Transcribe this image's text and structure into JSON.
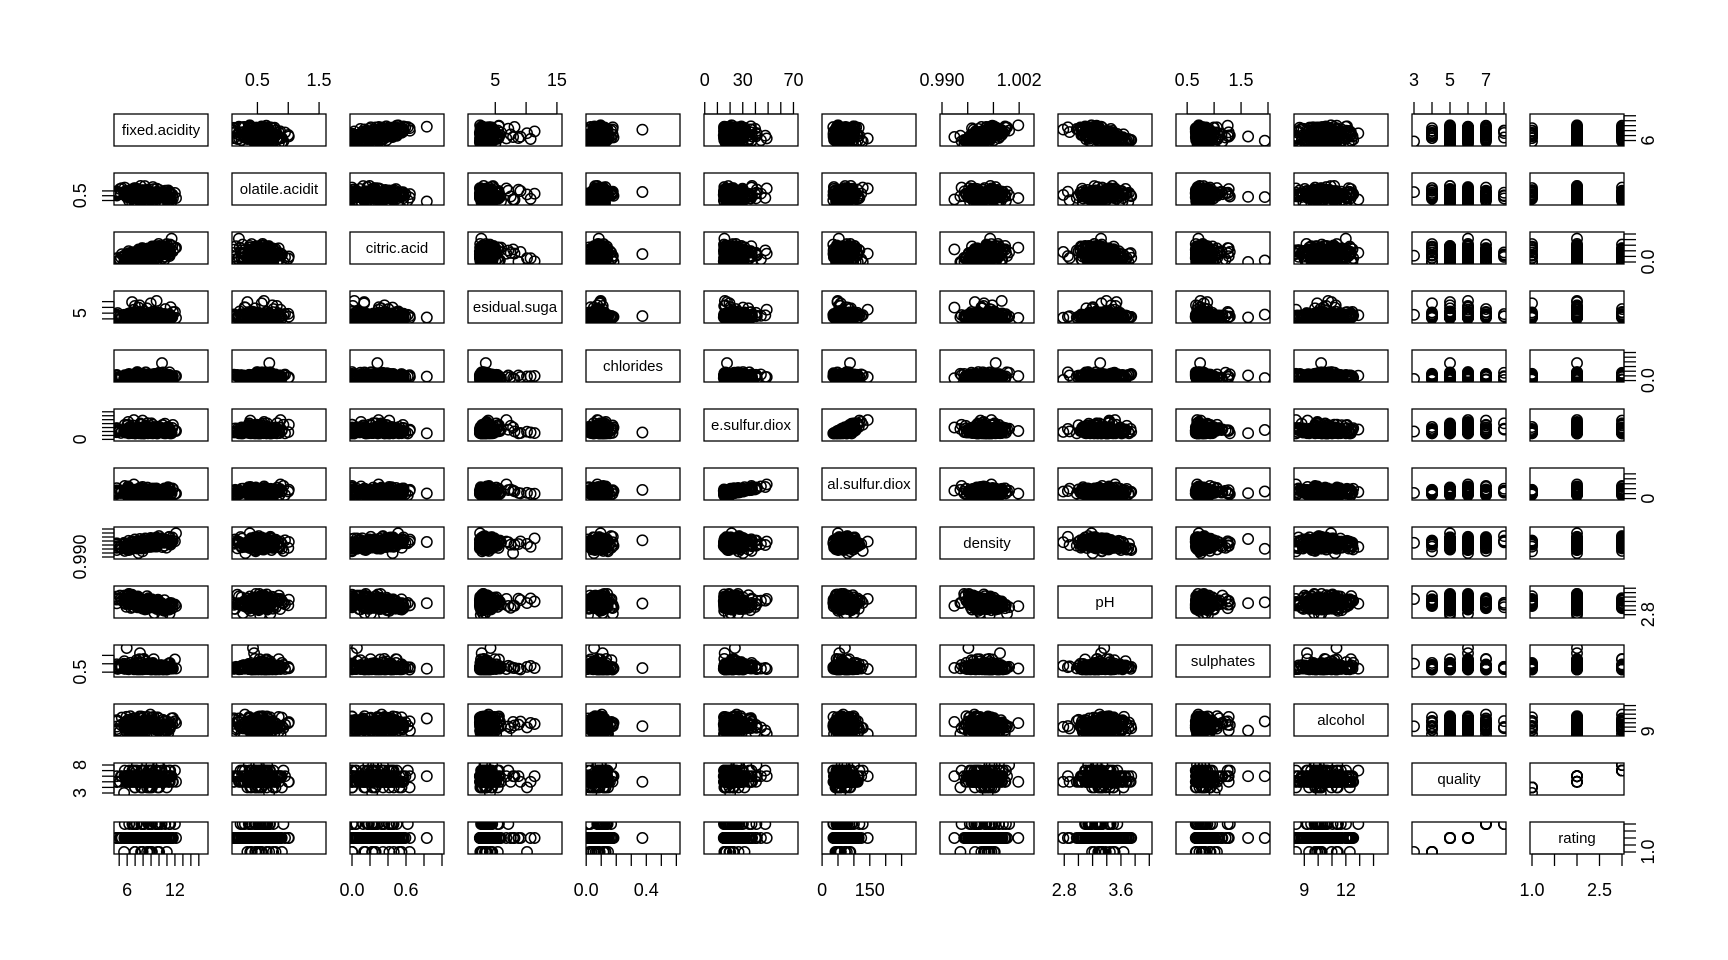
{
  "chart_data": {
    "type": "scatter",
    "variables": [
      {
        "name": "fixed.acidity",
        "diag_label": "fixed.acidity",
        "range": [
          4.6,
          15.9
        ]
      },
      {
        "name": "volatile.acidity",
        "diag_label": "olatile.acidit",
        "range": [
          0.12,
          1.58
        ]
      },
      {
        "name": "citric.acid",
        "diag_label": "citric.acid",
        "range": [
          0.0,
          1.0
        ]
      },
      {
        "name": "residual.sugar",
        "diag_label": "esidual.suga",
        "range": [
          0.9,
          15.5
        ]
      },
      {
        "name": "chlorides",
        "diag_label": "chlorides",
        "range": [
          0.012,
          0.611
        ]
      },
      {
        "name": "free.sulfur.dioxide",
        "diag_label": "e.sulfur.diox",
        "range": [
          1,
          72
        ]
      },
      {
        "name": "total.sulfur.dioxide",
        "diag_label": "al.sulfur.diox",
        "range": [
          6,
          289
        ]
      },
      {
        "name": "density",
        "diag_label": "density",
        "range": [
          0.99,
          1.004
        ]
      },
      {
        "name": "pH",
        "diag_label": "pH",
        "range": [
          2.74,
          4.01
        ]
      },
      {
        "name": "sulphates",
        "diag_label": "sulphates",
        "range": [
          0.33,
          2.0
        ]
      },
      {
        "name": "alcohol",
        "diag_label": "alcohol",
        "range": [
          8.4,
          14.9
        ]
      },
      {
        "name": "quality",
        "diag_label": "quality",
        "range": [
          3,
          8
        ]
      },
      {
        "name": "rating",
        "diag_label": "rating",
        "range": [
          1,
          3
        ]
      }
    ],
    "axes": {
      "top": [
        {
          "col": 1,
          "ticks": [
            0.5,
            1.0,
            1.5
          ],
          "labels": [
            "0.5",
            "",
            "1.5"
          ]
        },
        {
          "col": 3,
          "ticks": [
            5,
            10,
            15
          ],
          "labels": [
            "5",
            "",
            "15"
          ]
        },
        {
          "col": 5,
          "ticks": [
            0,
            10,
            20,
            30,
            40,
            50,
            60,
            70
          ],
          "labels": [
            "0",
            "",
            "",
            "30",
            "",
            "",
            "",
            "70"
          ]
        },
        {
          "col": 7,
          "ticks": [
            0.99,
            0.994,
            0.998,
            1.002
          ],
          "labels": [
            "0.990",
            "",
            "",
            "1.002"
          ]
        },
        {
          "col": 9,
          "ticks": [
            0.5,
            1.0,
            1.5,
            2.0
          ],
          "labels": [
            "0.5",
            "",
            "1.5",
            ""
          ]
        },
        {
          "col": 11,
          "ticks": [
            3,
            4,
            5,
            6,
            7,
            8
          ],
          "labels": [
            "3",
            "",
            "5",
            "",
            "7",
            ""
          ]
        }
      ],
      "bottom": [
        {
          "col": 0,
          "ticks": [
            5,
            6,
            7,
            8,
            9,
            10,
            11,
            12,
            13,
            14,
            15
          ],
          "labels": [
            "",
            "6",
            "",
            "",
            "",
            "",
            "",
            "12",
            "",
            "",
            ""
          ]
        },
        {
          "col": 2,
          "ticks": [
            0.0,
            0.2,
            0.4,
            0.6,
            0.8,
            1.0
          ],
          "labels": [
            "0.0",
            "",
            "",
            "0.6",
            "",
            ""
          ]
        },
        {
          "col": 4,
          "ticks": [
            0.0,
            0.1,
            0.2,
            0.3,
            0.4,
            0.5,
            0.6
          ],
          "labels": [
            "0.0",
            "",
            "",
            "",
            "0.4",
            "",
            ""
          ]
        },
        {
          "col": 6,
          "ticks": [
            0,
            50,
            100,
            150,
            200,
            250
          ],
          "labels": [
            "0",
            "",
            "",
            "150",
            "",
            ""
          ]
        },
        {
          "col": 8,
          "ticks": [
            2.8,
            3.0,
            3.2,
            3.4,
            3.6,
            3.8,
            4.0
          ],
          "labels": [
            "2.8",
            "",
            "",
            "",
            "3.6",
            "",
            ""
          ]
        },
        {
          "col": 10,
          "ticks": [
            9,
            10,
            11,
            12,
            13,
            14
          ],
          "labels": [
            "9",
            "",
            "",
            "12",
            "",
            ""
          ]
        },
        {
          "col": 12,
          "ticks": [
            1.0,
            1.5,
            2.0,
            2.5,
            3.0
          ],
          "labels": [
            "1.0",
            "",
            "",
            "2.5",
            ""
          ]
        }
      ],
      "left": [
        {
          "row": 1,
          "ticks": [
            0.25,
            0.5,
            0.75
          ],
          "labels": [
            "",
            "0.5",
            ""
          ]
        },
        {
          "row": 3,
          "ticks": [
            2,
            5,
            8,
            11
          ],
          "labels": [
            "",
            "5",
            "",
            ""
          ]
        },
        {
          "row": 5,
          "ticks": [
            0,
            10,
            20,
            30,
            40,
            50,
            60,
            70
          ],
          "labels": [
            "0",
            "",
            "",
            "",
            "",
            "",
            "",
            ""
          ]
        },
        {
          "row": 7,
          "ticks": [
            0.99,
            0.992,
            0.994,
            0.996,
            0.998,
            1.0,
            1.002,
            1.004
          ],
          "labels": [
            "0.990",
            "",
            "",
            "",
            "",
            "",
            "",
            ""
          ]
        },
        {
          "row": 9,
          "ticks": [
            0.5,
            1.0,
            1.5
          ],
          "labels": [
            "0.5",
            "",
            ""
          ]
        },
        {
          "row": 11,
          "ticks": [
            3,
            4,
            5,
            6,
            7,
            8
          ],
          "labels": [
            "3",
            "",
            "",
            "",
            "",
            "8"
          ]
        }
      ],
      "right": [
        {
          "row": 0,
          "ticks": [
            6,
            8,
            10,
            12,
            14,
            16
          ],
          "labels": [
            "6",
            "",
            "",
            "",
            "",
            ""
          ]
        },
        {
          "row": 2,
          "ticks": [
            0.0,
            0.2,
            0.4,
            0.6,
            0.8,
            1.0
          ],
          "labels": [
            "0.0",
            "",
            "",
            "",
            "",
            ""
          ]
        },
        {
          "row": 4,
          "ticks": [
            0.0,
            0.1,
            0.2,
            0.3,
            0.4,
            0.5,
            0.6
          ],
          "labels": [
            "0.0",
            "",
            "",
            "",
            "",
            "",
            ""
          ]
        },
        {
          "row": 6,
          "ticks": [
            0,
            50,
            100,
            150,
            200,
            250
          ],
          "labels": [
            "0",
            "",
            "",
            "",
            "",
            ""
          ]
        },
        {
          "row": 8,
          "ticks": [
            2.8,
            3.0,
            3.2,
            3.4,
            3.6,
            3.8,
            4.0
          ],
          "labels": [
            "2.8",
            "",
            "",
            "",
            "",
            "",
            ""
          ]
        },
        {
          "row": 10,
          "ticks": [
            9,
            10,
            11,
            12,
            13,
            14,
            15
          ],
          "labels": [
            "9",
            "",
            "",
            "",
            "",
            "",
            ""
          ]
        },
        {
          "row": 12,
          "ticks": [
            1.0,
            1.5,
            2.0,
            2.5,
            3.0
          ],
          "labels": [
            "1.0",
            "",
            "",
            "",
            ""
          ]
        }
      ]
    },
    "grid": false,
    "legend": "none",
    "title": "",
    "marker": "open-circle",
    "color": "#000000"
  }
}
